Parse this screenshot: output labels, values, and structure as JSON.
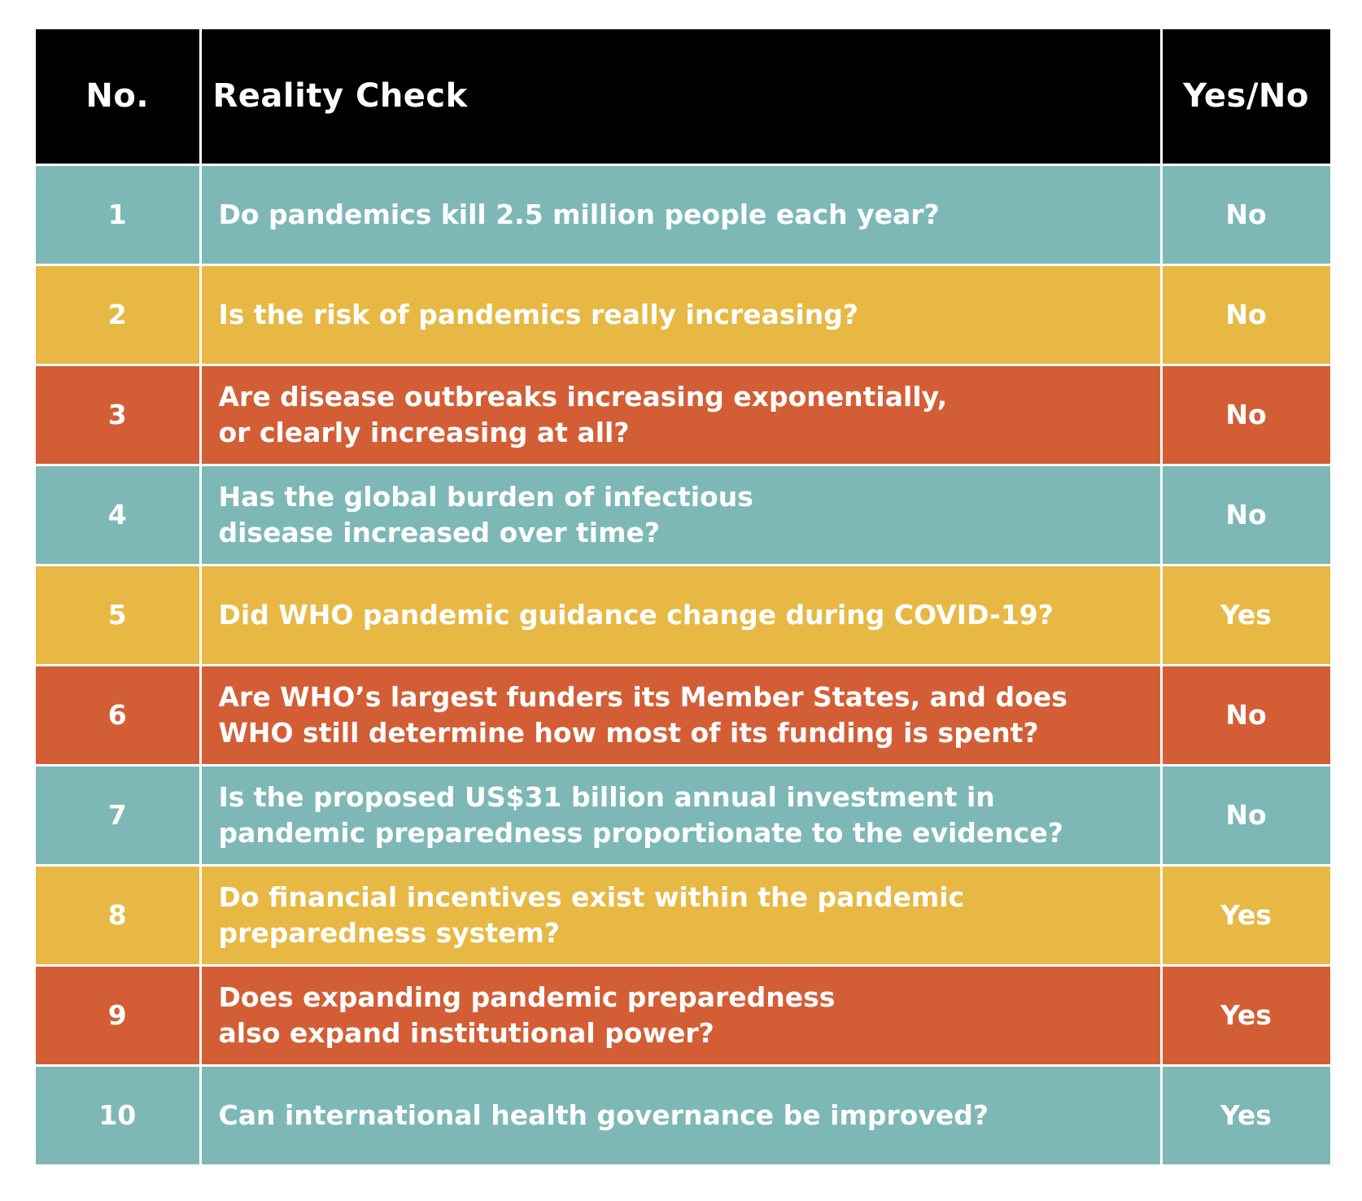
{
  "table": {
    "headers": {
      "number": "No.",
      "question": "Reality Check",
      "answer": "Yes/No"
    },
    "colors": {
      "header": "#000000",
      "teal": "#7db8b7",
      "yellow": "#e7b944",
      "orange": "#d35e36",
      "text": "#ffffff"
    },
    "rows": [
      {
        "number": "1",
        "question": "Do pandemics kill 2.5 million people each year?",
        "answer": "No",
        "color": "teal"
      },
      {
        "number": "2",
        "question": "Is the risk of pandemics really increasing?",
        "answer": "No",
        "color": "yellow"
      },
      {
        "number": "3",
        "question": "Are disease outbreaks increasing exponentially,\nor clearly increasing at all?",
        "answer": "No",
        "color": "orange"
      },
      {
        "number": "4",
        "question": "Has the global burden of infectious\ndisease increased over time?",
        "answer": "No",
        "color": "teal"
      },
      {
        "number": "5",
        "question": "Did WHO pandemic guidance change during COVID-19?",
        "answer": "Yes",
        "color": "yellow"
      },
      {
        "number": "6",
        "question": "Are WHO’s largest funders its Member States, and does\nWHO still determine how most of its funding is spent?",
        "answer": "No",
        "color": "orange"
      },
      {
        "number": "7",
        "question": "Is the proposed US$31 billion annual investment in\npandemic preparedness proportionate to the evidence?",
        "answer": "No",
        "color": "teal"
      },
      {
        "number": "8",
        "question": "Do financial incentives exist within the pandemic\npreparedness system?",
        "answer": "Yes",
        "color": "yellow"
      },
      {
        "number": "9",
        "question": "Does expanding pandemic preparedness\nalso expand institutional power?",
        "answer": "Yes",
        "color": "orange"
      },
      {
        "number": "10",
        "question": "Can international health governance be improved?",
        "answer": "Yes",
        "color": "teal"
      }
    ]
  }
}
